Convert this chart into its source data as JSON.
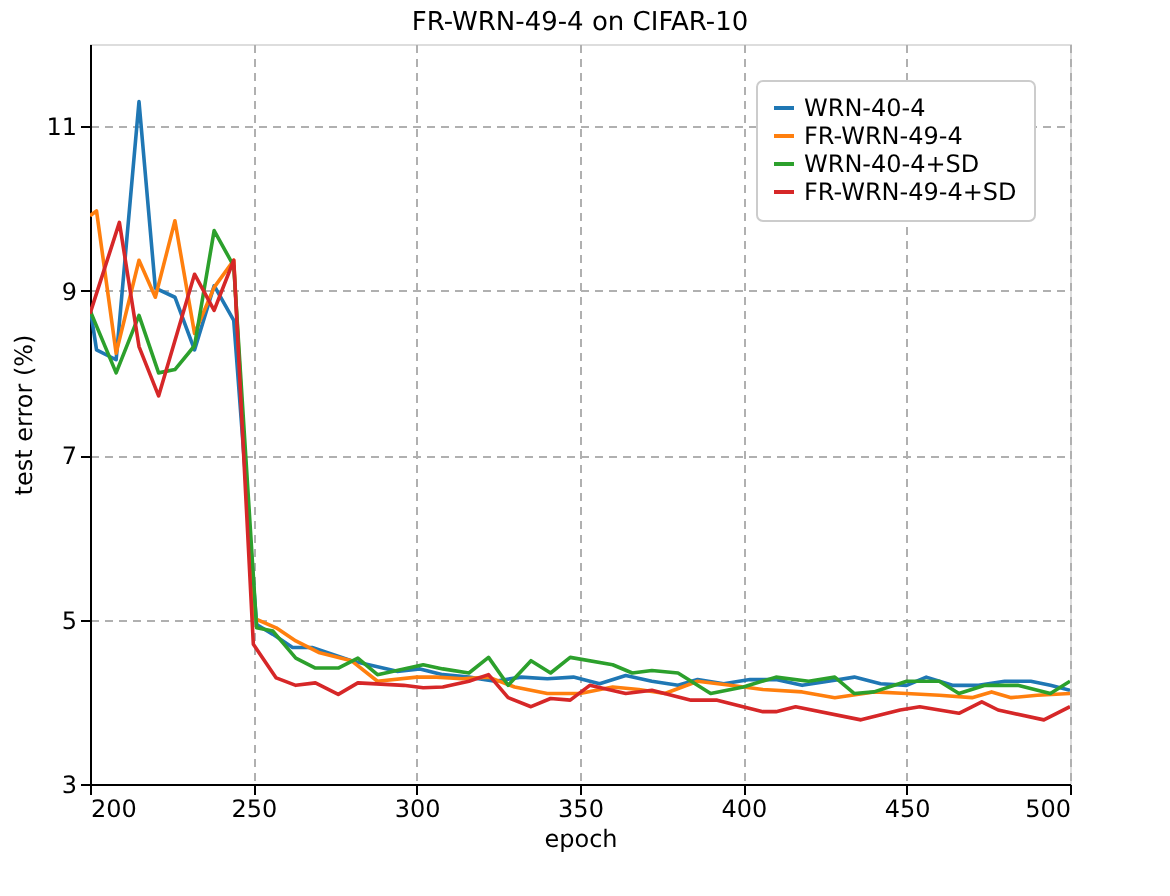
{
  "chart_data": {
    "type": "line",
    "title": "FR-WRN-49-4 on CIFAR-10",
    "xlabel": "epoch",
    "ylabel": "test error (%)",
    "xlim": [
      200,
      500
    ],
    "xticks": [
      200,
      250,
      300,
      350,
      400,
      450,
      500
    ],
    "ylim": [
      3,
      12
    ],
    "yticks": [
      3,
      5,
      7,
      9,
      11
    ],
    "grid": true,
    "legend": "top right",
    "line_style": "solid",
    "marker": "none",
    "series": [
      {
        "name": "WRN-40-4",
        "color": "#1f77b4",
        "x": [
          200,
          202,
          208,
          215,
          220,
          226,
          232,
          238,
          244,
          251,
          256,
          262,
          268,
          280,
          294,
          301,
          308,
          316,
          324,
          332,
          340,
          348,
          356,
          364,
          372,
          380,
          386,
          394,
          402,
          410,
          418,
          426,
          434,
          442,
          450,
          456,
          464,
          472,
          480,
          488,
          494,
          500
        ],
        "values": [
          8.8,
          8.28,
          8.16,
          11.3,
          9.03,
          8.92,
          8.28,
          9.06,
          8.64,
          4.94,
          4.82,
          4.66,
          4.66,
          4.5,
          4.37,
          4.4,
          4.33,
          4.3,
          4.25,
          4.3,
          4.28,
          4.3,
          4.22,
          4.32,
          4.25,
          4.2,
          4.27,
          4.22,
          4.27,
          4.27,
          4.2,
          4.25,
          4.3,
          4.22,
          4.2,
          4.3,
          4.2,
          4.2,
          4.25,
          4.25,
          4.2,
          4.14
        ]
      },
      {
        "name": "FR-WRN-49-4",
        "color": "#ff7f0e",
        "x": [
          200,
          202,
          208,
          215,
          220,
          226,
          232,
          238,
          244,
          250,
          257,
          263,
          270,
          280,
          288,
          300,
          306,
          314,
          322,
          330,
          340,
          350,
          360,
          368,
          376,
          386,
          396,
          406,
          418,
          428,
          440,
          450,
          460,
          470,
          476,
          482,
          490,
          500
        ],
        "values": [
          9.91,
          9.97,
          8.24,
          9.37,
          8.92,
          9.85,
          8.48,
          9.04,
          9.37,
          5.02,
          4.9,
          4.74,
          4.6,
          4.5,
          4.25,
          4.3,
          4.3,
          4.28,
          4.3,
          4.18,
          4.1,
          4.1,
          4.18,
          4.15,
          4.1,
          4.25,
          4.2,
          4.15,
          4.12,
          4.05,
          4.12,
          4.1,
          4.08,
          4.05,
          4.12,
          4.05,
          4.08,
          4.1
        ]
      },
      {
        "name": "WRN-40-4+SD",
        "color": "#2ca02c",
        "x": [
          200,
          208,
          215,
          221,
          226,
          232,
          238,
          244,
          251,
          256,
          263,
          269,
          276,
          282,
          288,
          302,
          308,
          316,
          322,
          328,
          335,
          341,
          347,
          360,
          366,
          372,
          380,
          390,
          400,
          410,
          420,
          428,
          434,
          440,
          450,
          460,
          466,
          474,
          484,
          494,
          500
        ],
        "values": [
          8.76,
          8.0,
          8.7,
          8.0,
          8.04,
          8.33,
          9.73,
          9.3,
          4.9,
          4.86,
          4.53,
          4.41,
          4.41,
          4.53,
          4.33,
          4.45,
          4.4,
          4.35,
          4.54,
          4.2,
          4.5,
          4.35,
          4.54,
          4.45,
          4.35,
          4.38,
          4.35,
          4.1,
          4.18,
          4.3,
          4.25,
          4.3,
          4.1,
          4.12,
          4.25,
          4.25,
          4.1,
          4.2,
          4.2,
          4.1,
          4.25
        ]
      },
      {
        "name": "FR-WRN-49-4+SD",
        "color": "#d62728",
        "x": [
          200,
          209,
          215,
          221,
          232,
          238,
          244,
          250,
          257,
          263,
          269,
          276,
          282,
          296,
          302,
          308,
          316,
          322,
          328,
          335,
          341,
          347,
          353,
          364,
          372,
          384,
          392,
          406,
          410,
          416,
          436,
          448,
          454,
          466,
          473,
          478,
          492,
          500
        ],
        "values": [
          8.72,
          9.83,
          8.32,
          7.72,
          9.2,
          8.76,
          9.37,
          4.7,
          4.29,
          4.2,
          4.23,
          4.09,
          4.23,
          4.2,
          4.17,
          4.18,
          4.25,
          4.33,
          4.05,
          3.94,
          4.04,
          4.02,
          4.2,
          4.1,
          4.14,
          4.02,
          4.02,
          3.88,
          3.88,
          3.94,
          3.78,
          3.9,
          3.94,
          3.86,
          4.0,
          3.9,
          3.78,
          3.94
        ]
      }
    ]
  }
}
